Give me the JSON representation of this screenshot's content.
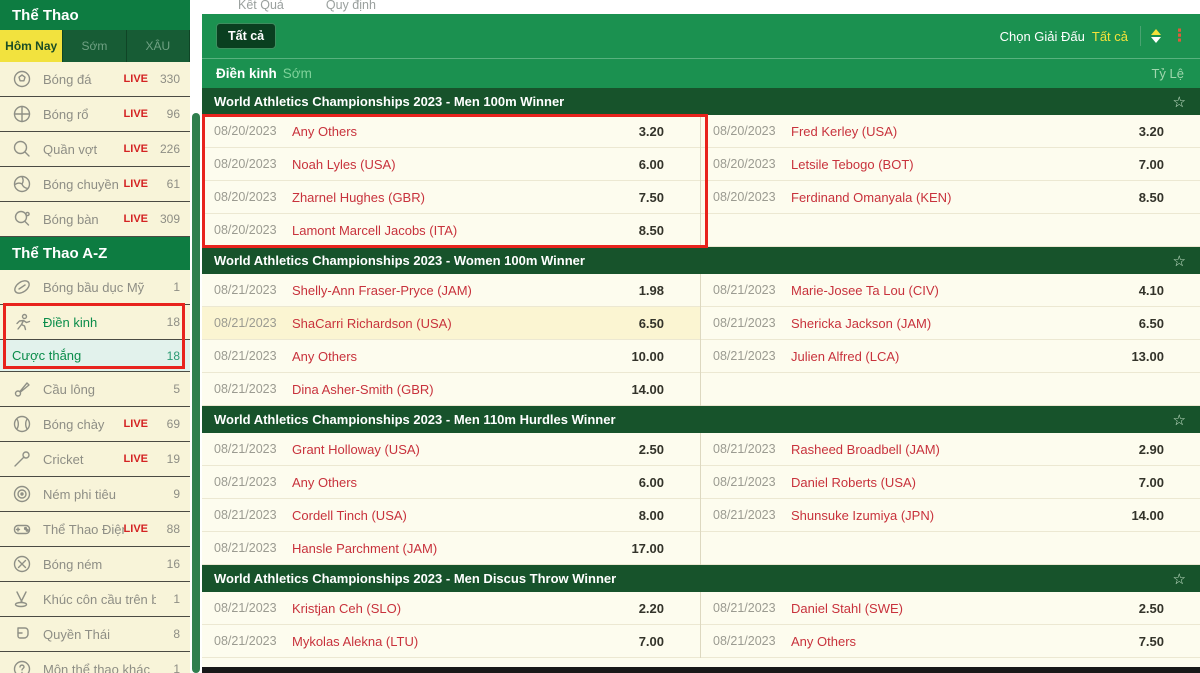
{
  "annotation_color": "#e8231d",
  "icons": {
    "star": "☆",
    "menu_dots": "⋮"
  },
  "topbar": {
    "links": [
      {
        "label": "Kết Quả"
      },
      {
        "label": "Quy định"
      }
    ]
  },
  "sidebar": {
    "title": "Thể Thao",
    "az_title": "Thể Thao A-Z",
    "live_label": "LIVE",
    "tabs": [
      {
        "label": "Hôm Nay",
        "active": true
      },
      {
        "label": "Sớm",
        "active": false
      },
      {
        "label": "XÂU",
        "active": false
      }
    ],
    "items": [
      {
        "icon": "football",
        "label": "Bóng đá",
        "live": true,
        "count": "330"
      },
      {
        "icon": "basketball",
        "label": "Bóng rổ",
        "live": true,
        "count": "96"
      },
      {
        "icon": "tennis",
        "label": "Quần vợt",
        "live": true,
        "count": "226"
      },
      {
        "icon": "volleyball",
        "label": "Bóng chuyền",
        "live": true,
        "count": "61"
      },
      {
        "icon": "table-tennis",
        "label": "Bóng bàn",
        "live": true,
        "count": "309"
      },
      {
        "type": "header",
        "label": "Thể Thao A-Z"
      },
      {
        "icon": "american-football",
        "label": "Bóng bầu dục Mỹ",
        "live": false,
        "count": "1"
      },
      {
        "icon": "athletics",
        "label": "Điền kinh",
        "live": false,
        "count": "18",
        "active": true
      },
      {
        "type": "subitem",
        "label": "Cược thắng",
        "count": "18"
      },
      {
        "icon": "badminton",
        "label": "Cầu lông",
        "live": false,
        "count": "5"
      },
      {
        "icon": "baseball",
        "label": "Bóng chày",
        "live": true,
        "count": "69"
      },
      {
        "icon": "cricket",
        "label": "Cricket",
        "live": true,
        "count": "19"
      },
      {
        "icon": "darts",
        "label": "Ném phi tiêu",
        "live": false,
        "count": "9"
      },
      {
        "icon": "esports",
        "label": "Thể Thao Điện Tử",
        "live": true,
        "count": "88"
      },
      {
        "icon": "handball",
        "label": "Bóng ném",
        "live": false,
        "count": "16"
      },
      {
        "icon": "ice-hockey",
        "label": "Khúc côn cầu trên băng",
        "live": false,
        "count": "1"
      },
      {
        "icon": "muay-thai",
        "label": "Quyền Thái",
        "live": false,
        "count": "8"
      },
      {
        "icon": "other-sports",
        "label": "Môn thể thao khác",
        "live": false,
        "count": "1"
      }
    ]
  },
  "main": {
    "all_button": "Tất cả",
    "choose_league_label": "Chọn Giải Đấu",
    "choose_league_value": "Tất cả",
    "sport_title": "Điền kinh",
    "sport_mode": "Sớm",
    "odds_header": "Tỷ Lệ",
    "sections": [
      {
        "title": "World Athletics Championships 2023 - Men 100m Winner",
        "left": [
          {
            "date": "08/20/2023",
            "name": "Any Others",
            "odds": "3.20"
          },
          {
            "date": "08/20/2023",
            "name": "Noah Lyles (USA)",
            "odds": "6.00"
          },
          {
            "date": "08/20/2023",
            "name": "Zharnel Hughes (GBR)",
            "odds": "7.50"
          },
          {
            "date": "08/20/2023",
            "name": "Lamont Marcell Jacobs (ITA)",
            "odds": "8.50"
          }
        ],
        "right": [
          {
            "date": "08/20/2023",
            "name": "Fred Kerley (USA)",
            "odds": "3.20"
          },
          {
            "date": "08/20/2023",
            "name": "Letsile Tebogo (BOT)",
            "odds": "7.00"
          },
          {
            "date": "08/20/2023",
            "name": "Ferdinand Omanyala (KEN)",
            "odds": "8.50"
          },
          {
            "empty": true
          }
        ]
      },
      {
        "title": "World Athletics Championships 2023 - Women 100m Winner",
        "left": [
          {
            "date": "08/21/2023",
            "name": "Shelly-Ann Fraser-Pryce (JAM)",
            "odds": "1.98"
          },
          {
            "date": "08/21/2023",
            "name": "ShaCarri Richardson (USA)",
            "odds": "6.50",
            "highlight": true
          },
          {
            "date": "08/21/2023",
            "name": "Any Others",
            "odds": "10.00"
          },
          {
            "date": "08/21/2023",
            "name": "Dina Asher-Smith (GBR)",
            "odds": "14.00"
          }
        ],
        "right": [
          {
            "date": "08/21/2023",
            "name": "Marie-Josee Ta Lou (CIV)",
            "odds": "4.10"
          },
          {
            "date": "08/21/2023",
            "name": "Shericka Jackson (JAM)",
            "odds": "6.50"
          },
          {
            "date": "08/21/2023",
            "name": "Julien Alfred (LCA)",
            "odds": "13.00"
          },
          {
            "empty": true
          }
        ]
      },
      {
        "title": "World Athletics Championships 2023 - Men 110m Hurdles Winner",
        "left": [
          {
            "date": "08/21/2023",
            "name": "Grant Holloway (USA)",
            "odds": "2.50"
          },
          {
            "date": "08/21/2023",
            "name": "Any Others",
            "odds": "6.00"
          },
          {
            "date": "08/21/2023",
            "name": "Cordell Tinch (USA)",
            "odds": "8.00"
          },
          {
            "date": "08/21/2023",
            "name": "Hansle Parchment (JAM)",
            "odds": "17.00"
          }
        ],
        "right": [
          {
            "date": "08/21/2023",
            "name": "Rasheed Broadbell (JAM)",
            "odds": "2.90"
          },
          {
            "date": "08/21/2023",
            "name": "Daniel Roberts (USA)",
            "odds": "7.00"
          },
          {
            "date": "08/21/2023",
            "name": "Shunsuke Izumiya (JPN)",
            "odds": "14.00"
          },
          {
            "empty": true
          }
        ]
      },
      {
        "title": "World Athletics Championships 2023 - Men Discus Throw Winner",
        "left": [
          {
            "date": "08/21/2023",
            "name": "Kristjan Ceh (SLO)",
            "odds": "2.20"
          },
          {
            "date": "08/21/2023",
            "name": "Mykolas Alekna (LTU)",
            "odds": "7.00"
          }
        ],
        "right": [
          {
            "date": "08/21/2023",
            "name": "Daniel Stahl (SWE)",
            "odds": "2.50"
          },
          {
            "date": "08/21/2023",
            "name": "Any Others",
            "odds": "7.50"
          }
        ]
      }
    ]
  }
}
